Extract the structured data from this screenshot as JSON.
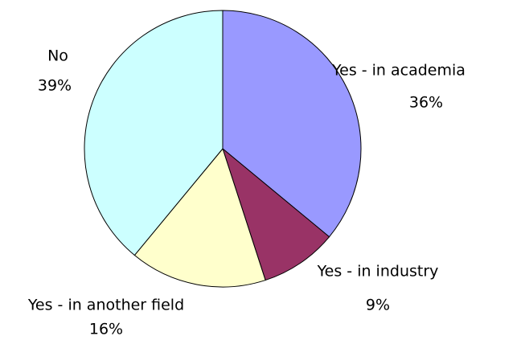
{
  "chart_data": {
    "type": "pie",
    "categories": [
      "Yes - in academia",
      "Yes - in industry",
      "Yes - in another field",
      "No"
    ],
    "values": [
      36,
      9,
      16,
      39
    ],
    "value_labels": [
      "36%",
      "9%",
      "16%",
      "39%"
    ],
    "colors": [
      "#9999ff",
      "#993366",
      "#ffffcc",
      "#ccffff"
    ]
  }
}
